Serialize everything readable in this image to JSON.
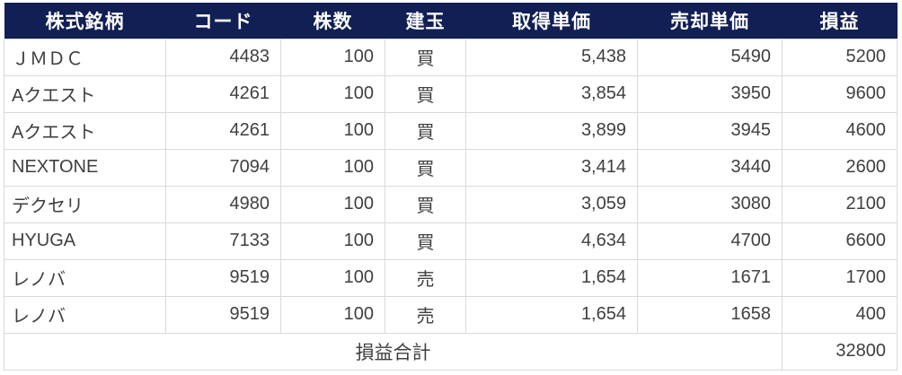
{
  "table": {
    "columns": [
      {
        "key": "name",
        "label": "株式銘柄",
        "align": "left"
      },
      {
        "key": "code",
        "label": "コード",
        "align": "right"
      },
      {
        "key": "shares",
        "label": "株数",
        "align": "right"
      },
      {
        "key": "position",
        "label": "建玉",
        "align": "center"
      },
      {
        "key": "buy-price",
        "label": "取得単価",
        "align": "right"
      },
      {
        "key": "sell-price",
        "label": "売却単価",
        "align": "right"
      },
      {
        "key": "pnl",
        "label": "損益",
        "align": "right"
      }
    ],
    "rows": [
      [
        "ＪＭＤＣ",
        "4483",
        "100",
        "買",
        "5,438",
        "5490",
        "5200"
      ],
      [
        "Aクエスト",
        "4261",
        "100",
        "買",
        "3,854",
        "3950",
        "9600"
      ],
      [
        "Aクエスト",
        "4261",
        "100",
        "買",
        "3,899",
        "3945",
        "4600"
      ],
      [
        "NEXTONE",
        "7094",
        "100",
        "買",
        "3,414",
        "3440",
        "2600"
      ],
      [
        "デクセリ",
        "4980",
        "100",
        "買",
        "3,059",
        "3080",
        "2100"
      ],
      [
        "HYUGA",
        "7133",
        "100",
        "買",
        "4,634",
        "4700",
        "6600"
      ],
      [
        "レノバ",
        "9519",
        "100",
        "売",
        "1,654",
        "1671",
        "1700"
      ],
      [
        "レノバ",
        "9519",
        "100",
        "売",
        "1,654",
        "1658",
        "400"
      ]
    ],
    "footer": {
      "label": "損益合計",
      "total": "32800"
    }
  },
  "colors": {
    "header_bg": "#111f55",
    "header_text": "#ffffff",
    "border": "#d9d9d9",
    "body_text": "#3f3f3f"
  }
}
